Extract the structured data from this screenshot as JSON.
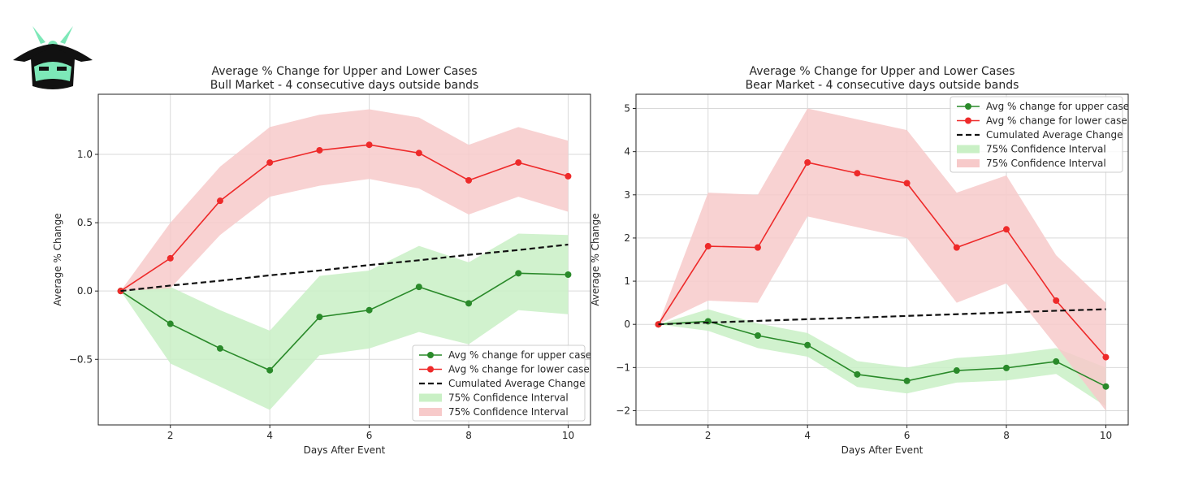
{
  "chart_data": [
    {
      "type": "line",
      "title": "Average % Change for Upper and Lower Cases\nBull Market - 4 consecutive days outside bands",
      "xlabel": "Days After Event",
      "ylabel": "Average % Change",
      "xlim": [
        0.55,
        10.45
      ],
      "ylim": [
        -0.98,
        1.44
      ],
      "x_ticks": [
        2,
        4,
        6,
        8,
        10
      ],
      "y_ticks": [
        -0.5,
        0.0,
        0.5,
        1.0
      ],
      "y_tick_labels": [
        "−0.5",
        "0.0",
        "0.5",
        "1.0"
      ],
      "grid": true,
      "legend_position": "lower-right",
      "x": [
        1,
        2,
        3,
        4,
        5,
        6,
        7,
        8,
        9,
        10
      ],
      "series": [
        {
          "name": "Avg % change for upper case",
          "kind": "line-marker",
          "color": "#2a8a2a",
          "values": [
            0.0,
            -0.24,
            -0.42,
            -0.58,
            -0.19,
            -0.14,
            0.03,
            -0.09,
            0.13,
            0.12
          ]
        },
        {
          "name": "Avg % change for lower case",
          "kind": "line-marker",
          "color": "#ee2a2a",
          "values": [
            0.0,
            0.24,
            0.66,
            0.94,
            1.03,
            1.07,
            1.01,
            0.81,
            0.94,
            0.84
          ]
        },
        {
          "name": "Cumulated Average Change",
          "kind": "dashed",
          "color": "#111111",
          "values": [
            0.0,
            0.04,
            0.075,
            0.115,
            0.15,
            0.19,
            0.225,
            0.265,
            0.3,
            0.34
          ]
        },
        {
          "name": "75% Confidence Interval",
          "kind": "band",
          "color": "#c9f0c5",
          "lower": [
            0.0,
            -0.53,
            -0.7,
            -0.87,
            -0.47,
            -0.42,
            -0.3,
            -0.39,
            -0.14,
            -0.17
          ],
          "upper": [
            0.0,
            0.03,
            -0.14,
            -0.29,
            0.11,
            0.15,
            0.33,
            0.21,
            0.42,
            0.41
          ]
        },
        {
          "name": "75% Confidence Interval",
          "kind": "band",
          "color": "#f7caca",
          "lower": [
            0.0,
            0.02,
            0.41,
            0.69,
            0.77,
            0.82,
            0.75,
            0.56,
            0.69,
            0.58
          ],
          "upper": [
            0.0,
            0.5,
            0.91,
            1.2,
            1.29,
            1.33,
            1.27,
            1.07,
            1.2,
            1.1
          ]
        }
      ]
    },
    {
      "type": "line",
      "title": "Average % Change for Upper and Lower Cases\nBear Market - 4 consecutive days outside bands",
      "xlabel": "Days After Event",
      "ylabel": "Average % Change",
      "xlim": [
        0.55,
        10.45
      ],
      "ylim": [
        -2.33,
        5.33
      ],
      "x_ticks": [
        2,
        4,
        6,
        8,
        10
      ],
      "y_ticks": [
        -2,
        -1,
        0,
        1,
        2,
        3,
        4,
        5
      ],
      "y_tick_labels": [
        "−2",
        "−1",
        "0",
        "1",
        "2",
        "3",
        "4",
        "5"
      ],
      "grid": true,
      "legend_position": "upper-right",
      "x": [
        1,
        2,
        3,
        4,
        5,
        6,
        7,
        8,
        9,
        10
      ],
      "series": [
        {
          "name": "Avg % change for upper case",
          "kind": "line-marker",
          "color": "#2a8a2a",
          "values": [
            0.0,
            0.07,
            -0.26,
            -0.48,
            -1.16,
            -1.31,
            -1.07,
            -1.01,
            -0.86,
            -1.44
          ]
        },
        {
          "name": "Avg % change for lower case",
          "kind": "line-marker",
          "color": "#ee2a2a",
          "values": [
            0.0,
            1.81,
            1.78,
            3.75,
            3.5,
            3.27,
            1.78,
            2.2,
            0.55,
            -0.76
          ]
        },
        {
          "name": "Cumulated Average Change",
          "kind": "dashed",
          "color": "#111111",
          "values": [
            0.0,
            0.04,
            0.08,
            0.12,
            0.155,
            0.195,
            0.235,
            0.275,
            0.315,
            0.35
          ]
        },
        {
          "name": "75% Confidence Interval",
          "kind": "band",
          "color": "#c9f0c5",
          "lower": [
            0.0,
            -0.15,
            -0.55,
            -0.75,
            -1.45,
            -1.6,
            -1.35,
            -1.3,
            -1.15,
            -1.9
          ],
          "upper": [
            0.0,
            0.35,
            0.02,
            -0.2,
            -0.85,
            -1.0,
            -0.78,
            -0.7,
            -0.55,
            -1.0
          ]
        },
        {
          "name": "75% Confidence Interval",
          "kind": "band",
          "color": "#f7caca",
          "lower": [
            0.0,
            0.55,
            0.5,
            2.5,
            2.25,
            2.0,
            0.5,
            0.95,
            -0.5,
            -2.0
          ],
          "upper": [
            0.0,
            3.05,
            3.0,
            5.0,
            4.75,
            4.5,
            3.05,
            3.45,
            1.6,
            0.5
          ]
        }
      ]
    }
  ]
}
